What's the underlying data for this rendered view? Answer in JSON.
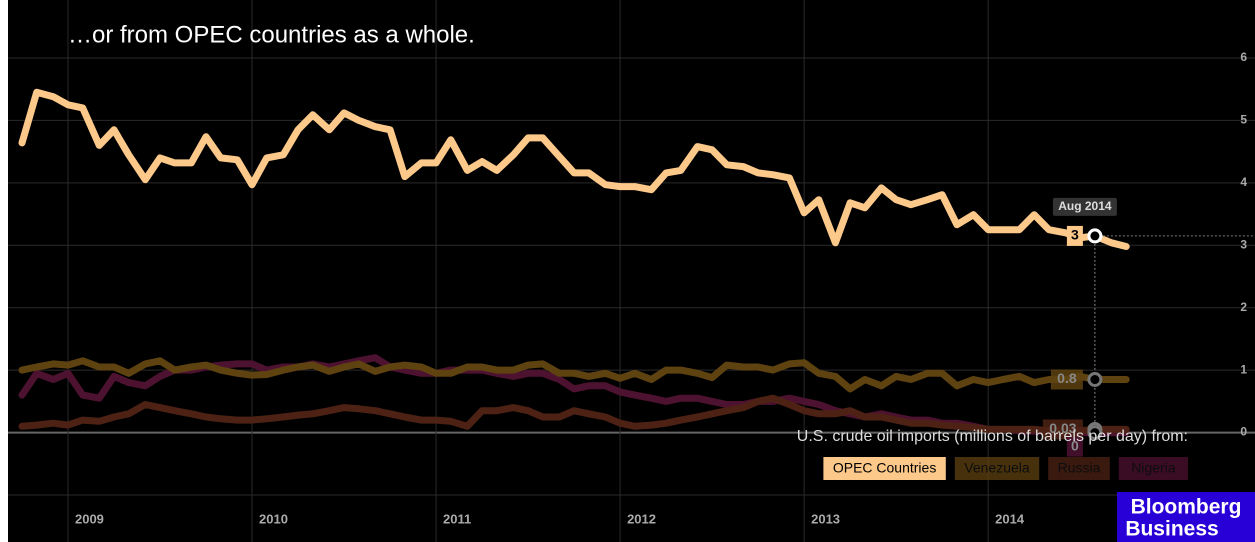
{
  "chart_data": {
    "type": "line",
    "title": "…or from OPEC countries as a whole.",
    "legend_title": "U.S. crude oil imports (millions of barrels per day) from:",
    "legend": "bottom-right",
    "grid": true,
    "x": [
      2008.75,
      2008.83,
      2008.92,
      2009,
      2009.08,
      2009.17,
      2009.25,
      2009.33,
      2009.42,
      2009.5,
      2009.58,
      2009.67,
      2009.75,
      2009.83,
      2009.92,
      2010,
      2010.08,
      2010.17,
      2010.25,
      2010.33,
      2010.42,
      2010.5,
      2010.58,
      2010.67,
      2010.75,
      2010.83,
      2010.92,
      2011,
      2011.08,
      2011.17,
      2011.25,
      2011.33,
      2011.42,
      2011.5,
      2011.58,
      2011.67,
      2011.75,
      2011.83,
      2011.92,
      2012,
      2012.08,
      2012.17,
      2012.25,
      2012.33,
      2012.42,
      2012.5,
      2012.58,
      2012.67,
      2012.75,
      2012.83,
      2012.92,
      2013,
      2013.08,
      2013.17,
      2013.25,
      2013.33,
      2013.42,
      2013.5,
      2013.58,
      2013.67,
      2013.75,
      2013.83,
      2013.92,
      2014,
      2014.08,
      2014.17,
      2014.25,
      2014.33,
      2014.42,
      2014.5,
      2014.58,
      2014.67,
      2014.75
    ],
    "xlim": [
      2008.674,
      2015.45
    ],
    "xticks": [
      2009,
      2010,
      2011,
      2012,
      2013,
      2014
    ],
    "ylim": [
      -1,
      6
    ],
    "yticks": [
      0,
      1,
      2,
      3,
      4,
      5,
      6
    ],
    "series": [
      {
        "name": "OPEC Countries",
        "color": "#fcc98a",
        "values": [
          4.64,
          5.45,
          5.38,
          5.25,
          5.2,
          4.6,
          4.85,
          4.45,
          4.05,
          4.4,
          4.32,
          4.32,
          4.74,
          4.4,
          4.37,
          3.97,
          4.4,
          4.45,
          4.85,
          5.09,
          4.85,
          5.12,
          5.0,
          4.9,
          4.85,
          4.1,
          4.32,
          4.32,
          4.69,
          4.2,
          4.34,
          4.2,
          4.45,
          4.72,
          4.72,
          4.42,
          4.16,
          4.16,
          3.97,
          3.94,
          3.94,
          3.89,
          4.16,
          4.2,
          4.58,
          4.53,
          4.29,
          4.26,
          4.16,
          4.13,
          4.08,
          3.52,
          3.73,
          3.04,
          3.68,
          3.6,
          3.92,
          3.73,
          3.65,
          3.73,
          3.81,
          3.33,
          3.49,
          3.25,
          3.25,
          3.25,
          3.49,
          3.25,
          3.2,
          3.12,
          3.15,
          3.04,
          2.98
        ]
      },
      {
        "name": "Venezuela",
        "color": "#5e4210",
        "values": [
          1.0,
          1.05,
          1.1,
          1.08,
          1.15,
          1.05,
          1.05,
          0.95,
          1.1,
          1.15,
          1.0,
          1.05,
          1.08,
          1.0,
          0.95,
          0.92,
          0.93,
          1.0,
          1.05,
          1.08,
          0.98,
          1.05,
          1.1,
          0.98,
          1.05,
          1.08,
          1.05,
          0.95,
          0.95,
          1.05,
          1.05,
          1.0,
          1.0,
          1.08,
          1.1,
          0.95,
          0.95,
          0.9,
          0.95,
          0.87,
          0.95,
          0.85,
          1.0,
          1.0,
          0.95,
          0.88,
          1.08,
          1.05,
          1.05,
          1.0,
          1.1,
          1.12,
          0.95,
          0.9,
          0.7,
          0.85,
          0.75,
          0.9,
          0.85,
          0.95,
          0.95,
          0.75,
          0.85,
          0.8,
          0.85,
          0.9,
          0.8,
          0.85,
          0.85,
          0.9,
          0.85,
          0.85,
          0.85
        ]
      },
      {
        "name": "Russia",
        "color": "#4d2214",
        "values": [
          0.1,
          0.12,
          0.15,
          0.12,
          0.2,
          0.18,
          0.25,
          0.3,
          0.45,
          0.4,
          0.35,
          0.3,
          0.25,
          0.22,
          0.2,
          0.2,
          0.22,
          0.25,
          0.28,
          0.3,
          0.35,
          0.4,
          0.38,
          0.35,
          0.3,
          0.25,
          0.2,
          0.2,
          0.18,
          0.1,
          0.35,
          0.35,
          0.4,
          0.35,
          0.25,
          0.25,
          0.35,
          0.3,
          0.25,
          0.15,
          0.1,
          0.12,
          0.15,
          0.2,
          0.25,
          0.3,
          0.35,
          0.4,
          0.5,
          0.55,
          0.45,
          0.35,
          0.3,
          0.3,
          0.35,
          0.25,
          0.25,
          0.2,
          0.15,
          0.15,
          0.12,
          0.1,
          0.08,
          0.05,
          0.05,
          0.05,
          0.05,
          0.03,
          0.03,
          0.03,
          0.05,
          0.05,
          0.05
        ]
      },
      {
        "name": "Nigeria",
        "color": "#4e1231",
        "values": [
          0.6,
          0.95,
          0.85,
          0.95,
          0.6,
          0.55,
          0.9,
          0.8,
          0.75,
          0.9,
          1.0,
          1.0,
          1.05,
          1.08,
          1.1,
          1.1,
          1.0,
          1.05,
          1.05,
          1.1,
          1.05,
          1.1,
          1.15,
          1.2,
          1.05,
          1.0,
          0.95,
          0.95,
          1.0,
          1.0,
          1.0,
          0.95,
          0.9,
          0.95,
          0.95,
          0.85,
          0.7,
          0.75,
          0.75,
          0.65,
          0.6,
          0.55,
          0.5,
          0.55,
          0.55,
          0.5,
          0.45,
          0.45,
          0.5,
          0.5,
          0.55,
          0.5,
          0.45,
          0.35,
          0.3,
          0.25,
          0.3,
          0.25,
          0.2,
          0.2,
          0.15,
          0.15,
          0.1,
          0.05,
          0.05,
          0.03,
          0.02,
          0.02,
          0,
          0,
          0,
          0,
          0
        ]
      }
    ],
    "hover": {
      "label": "Aug 2014",
      "value_labels": [
        "3",
        "0.8",
        "0.03",
        "0"
      ]
    }
  },
  "logo": [
    "Bloomberg",
    "Business"
  ]
}
